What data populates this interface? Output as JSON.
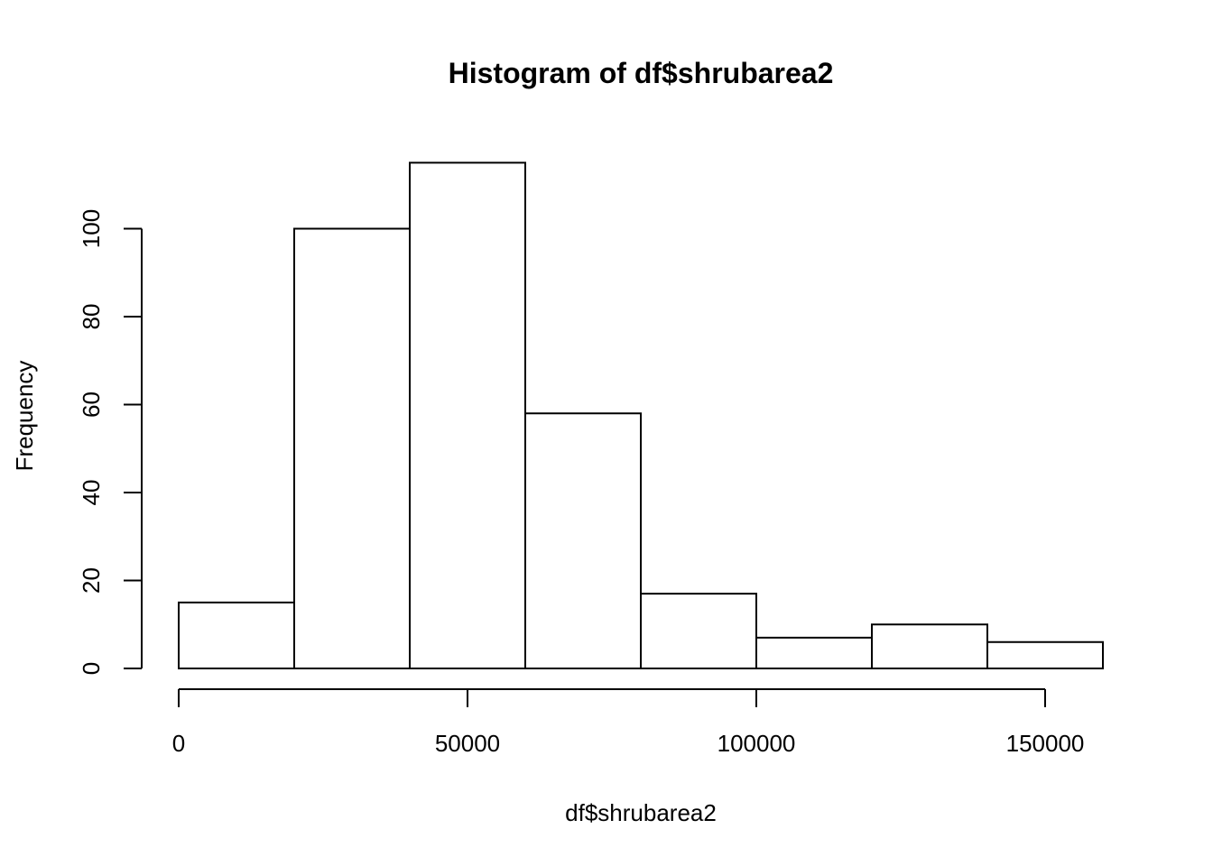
{
  "chart_data": {
    "type": "bar",
    "title": "Histogram of df$shrubarea2",
    "xlabel": "df$shrubarea2",
    "ylabel": "Frequency",
    "bins": [
      {
        "from": 0,
        "to": 20000,
        "count": 15
      },
      {
        "from": 20000,
        "to": 40000,
        "count": 100
      },
      {
        "from": 40000,
        "to": 60000,
        "count": 115
      },
      {
        "from": 60000,
        "to": 80000,
        "count": 58
      },
      {
        "from": 80000,
        "to": 100000,
        "count": 17
      },
      {
        "from": 100000,
        "to": 120000,
        "count": 7
      },
      {
        "from": 120000,
        "to": 140000,
        "count": 10
      },
      {
        "from": 140000,
        "to": 160000,
        "count": 6
      }
    ],
    "xticks": [
      0,
      50000,
      100000,
      150000
    ],
    "yticks": [
      0,
      20,
      40,
      60,
      80,
      100
    ],
    "xlim": [
      0,
      160000
    ],
    "ylim": [
      0,
      115
    ],
    "grid": false,
    "legend": "none"
  }
}
